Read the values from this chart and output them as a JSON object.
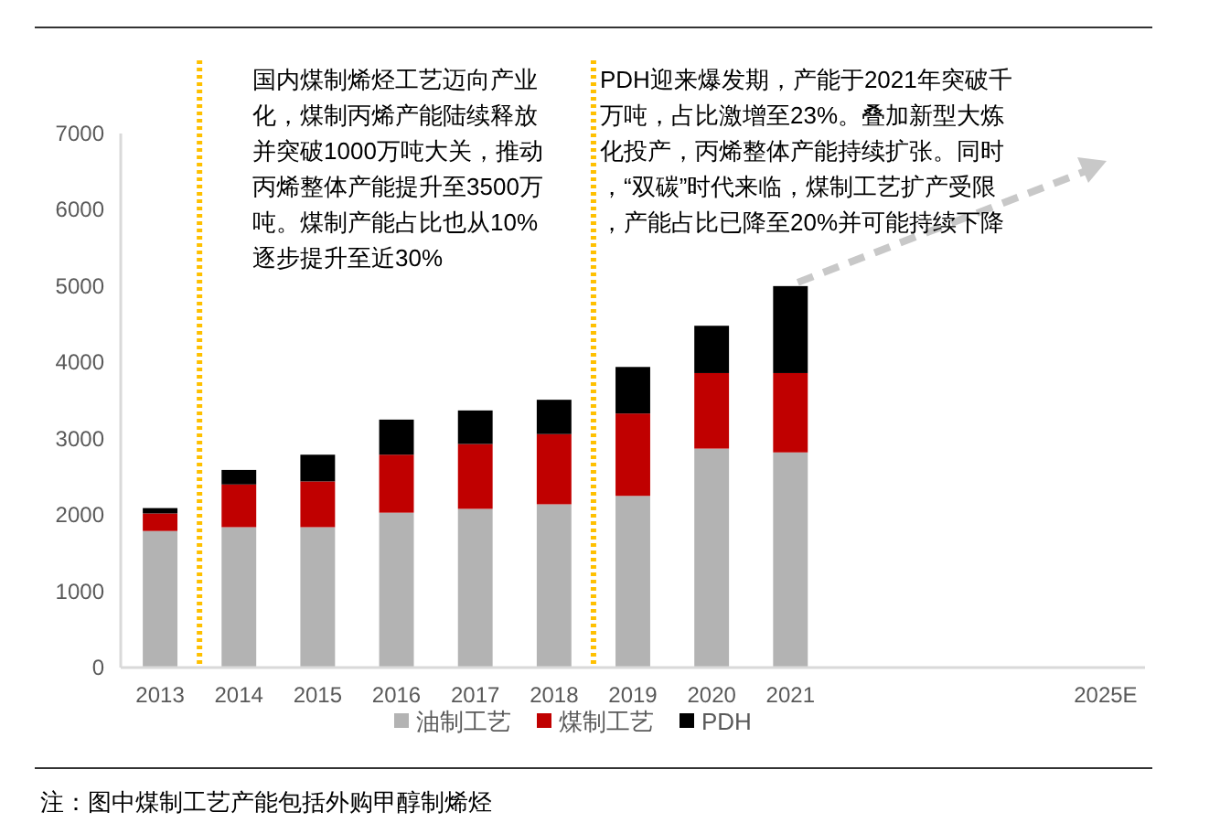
{
  "chart_data": {
    "type": "bar",
    "stacked": true,
    "categories": [
      "2013",
      "2014",
      "2015",
      "2016",
      "2017",
      "2018",
      "2019",
      "2020",
      "2021",
      null,
      null,
      null,
      "2025E"
    ],
    "series": [
      {
        "name": "油制工艺",
        "color": "#b3b3b3",
        "values": [
          1790,
          1840,
          1840,
          2030,
          2080,
          2140,
          2250,
          2870,
          2820,
          null,
          null,
          null,
          null
        ]
      },
      {
        "name": "煤制工艺",
        "color": "#c00000",
        "values": [
          230,
          560,
          600,
          760,
          850,
          920,
          1080,
          990,
          1040,
          null,
          null,
          null,
          null
        ]
      },
      {
        "name": "PDH",
        "color": "#000000",
        "values": [
          70,
          190,
          350,
          460,
          440,
          450,
          610,
          620,
          1140,
          null,
          null,
          null,
          null
        ]
      }
    ],
    "ylim": [
      0,
      7000
    ],
    "yticks": [
      0,
      1000,
      2000,
      3000,
      4000,
      5000,
      6000,
      7000
    ],
    "grid": false,
    "legend": "bottom",
    "annotations": [
      "国内煤制烯烃工艺迈向产业化，煤制丙烯产能陆续释放并突破1000万吨大关，推动丙烯整体产能提升至3500万吨。煤制产能占比也从10%逐步提升至近30%",
      "PDH迎来爆发期，产能于2021年突破千万吨，占比激增至23%。叠加新型大炼化投产，丙烯整体产能持续扩张。同时，“双碳”时代来临，煤制工艺扩产受限，产能占比已降至20%并可能持续下降",
      "注：图中煤制工艺产能包括外购甲醇制烯烃"
    ]
  }
}
